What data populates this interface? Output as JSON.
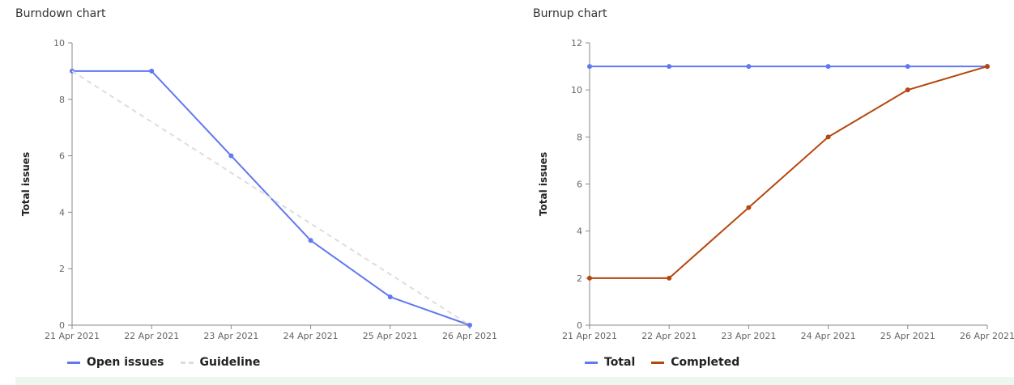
{
  "colors": {
    "blue": "#6178f0",
    "orange": "#b5470e",
    "guideline": "#dddddd",
    "axis": "#888888"
  },
  "chart_data": [
    {
      "id": "burndown",
      "type": "line",
      "title": "Burndown chart",
      "xlabel": "",
      "ylabel": "Total issues",
      "categories": [
        "21 Apr 2021",
        "22 Apr 2021",
        "23 Apr 2021",
        "24 Apr 2021",
        "25 Apr 2021",
        "26 Apr 2021"
      ],
      "ylim": [
        0,
        10
      ],
      "yticks": [
        0,
        2,
        4,
        6,
        8,
        10
      ],
      "grid": false,
      "legend_position": "bottom-left",
      "series": [
        {
          "name": "Open issues",
          "values": [
            9,
            9,
            6,
            3,
            1,
            0
          ],
          "color": "#6178f0",
          "style": "solid",
          "markers": true
        },
        {
          "name": "Guideline",
          "values": [
            9,
            7.2,
            5.4,
            3.6,
            1.8,
            0
          ],
          "color": "#dddddd",
          "style": "dashed",
          "markers": false
        }
      ]
    },
    {
      "id": "burnup",
      "type": "line",
      "title": "Burnup chart",
      "xlabel": "",
      "ylabel": "Total issues",
      "categories": [
        "21 Apr 2021",
        "22 Apr 2021",
        "23 Apr 2021",
        "24 Apr 2021",
        "25 Apr 2021",
        "26 Apr 2021"
      ],
      "ylim": [
        0,
        12
      ],
      "yticks": [
        0,
        2,
        4,
        6,
        8,
        10,
        12
      ],
      "grid": false,
      "legend_position": "bottom-left",
      "series": [
        {
          "name": "Total",
          "values": [
            11,
            11,
            11,
            11,
            11,
            11
          ],
          "color": "#6178f0",
          "style": "solid",
          "markers": true
        },
        {
          "name": "Completed",
          "values": [
            2,
            2,
            5,
            8,
            10,
            11
          ],
          "color": "#b5470e",
          "style": "solid",
          "markers": true
        }
      ]
    }
  ]
}
